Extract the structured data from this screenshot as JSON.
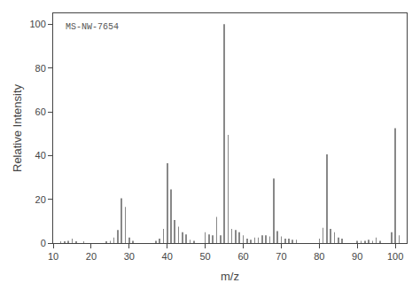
{
  "chart_data": {
    "type": "stem",
    "annotation": "MS-NW-7654",
    "xlabel": "m/z",
    "ylabel": "Relative Intensity",
    "xlim": [
      10,
      103
    ],
    "ylim": [
      0,
      105
    ],
    "xticks": [
      10,
      20,
      30,
      40,
      50,
      60,
      70,
      80,
      90,
      100
    ],
    "yticks": [
      0,
      20,
      40,
      60,
      80,
      100
    ],
    "grid": false,
    "color": "#888888",
    "x": [
      12,
      13,
      14,
      15,
      16,
      18,
      24,
      25,
      26,
      27,
      28,
      29,
      30,
      31,
      37,
      38,
      39,
      40,
      41,
      42,
      43,
      44,
      45,
      46,
      47,
      50,
      51,
      52,
      53,
      54,
      55,
      56,
      57,
      58,
      59,
      60,
      61,
      62,
      63,
      64,
      65,
      66,
      67,
      68,
      69,
      70,
      71,
      72,
      73,
      74,
      80,
      81,
      82,
      83,
      84,
      85,
      86,
      90,
      91,
      92,
      93,
      94,
      95,
      96,
      99,
      100,
      101
    ],
    "values": [
      0.5,
      0.5,
      1.0,
      2.0,
      0.5,
      0.5,
      0.5,
      1.0,
      2.5,
      6.0,
      20.5,
      16.5,
      2.5,
      1.0,
      1.0,
      2.0,
      6.5,
      36.5,
      24.5,
      10.5,
      7.5,
      5.0,
      4.0,
      1.5,
      1.0,
      5.0,
      4.0,
      3.5,
      12.0,
      3.5,
      100.0,
      49.5,
      6.5,
      6.0,
      5.0,
      3.5,
      2.0,
      1.5,
      2.5,
      2.5,
      3.5,
      3.5,
      3.0,
      29.5,
      5.5,
      3.0,
      2.0,
      2.0,
      1.5,
      1.5,
      2.0,
      7.0,
      40.5,
      6.5,
      5.0,
      2.5,
      2.0,
      1.0,
      1.0,
      1.0,
      1.5,
      1.0,
      2.5,
      1.0,
      5.0,
      52.5,
      3.5
    ]
  }
}
